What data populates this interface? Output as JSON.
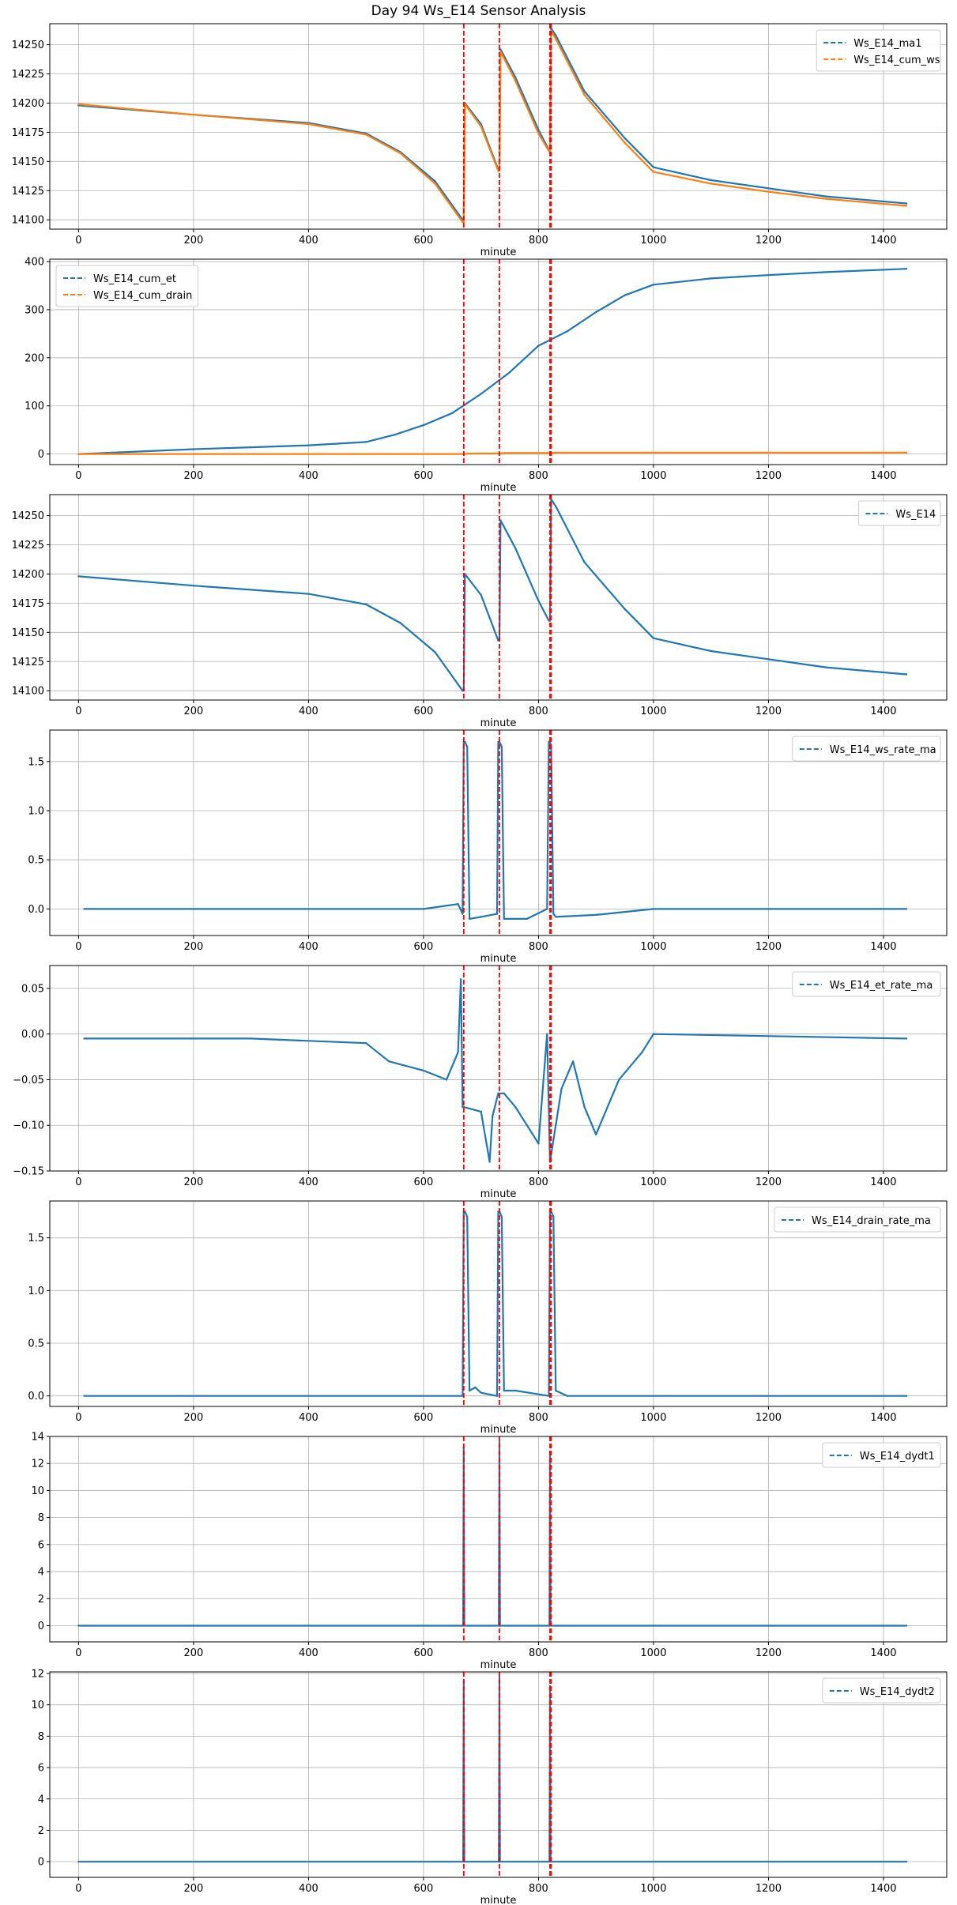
{
  "title": "Day 94 Ws_E14 Sensor Analysis",
  "colors": {
    "blue": "#1f77b4",
    "orange": "#ff7f0e",
    "vline": "#ff0000",
    "grid": "#b0b0b0"
  },
  "chart_data": [
    {
      "type": "line",
      "xlabel": "minute",
      "legend": "top-right",
      "xlim": [
        -50,
        1510
      ],
      "ylim": [
        14092,
        14268
      ],
      "xticks": [
        0,
        200,
        400,
        600,
        800,
        1000,
        1200,
        1400
      ],
      "yticks": [
        14100,
        14125,
        14150,
        14175,
        14200,
        14225,
        14250
      ],
      "vlines": [
        670,
        732,
        820,
        822
      ],
      "series": [
        {
          "name": "Ws_E14_ma1",
          "color": "#1f77b4",
          "x": [
            0,
            200,
            400,
            500,
            560,
            620,
            668,
            670,
            672,
            700,
            730,
            732,
            734,
            760,
            800,
            818,
            820,
            822,
            830,
            880,
            950,
            1000,
            1100,
            1200,
            1300,
            1440
          ],
          "y": [
            14198,
            14190,
            14183,
            14174,
            14158,
            14133,
            14100,
            14100,
            14200,
            14182,
            14143,
            14143,
            14246,
            14222,
            14177,
            14160,
            14160,
            14264,
            14258,
            14210,
            14170,
            14145,
            14134,
            14127,
            14120,
            14114
          ]
        },
        {
          "name": "Ws_E14_cum_ws",
          "color": "#ff7f0e",
          "x": [
            0,
            200,
            400,
            500,
            560,
            620,
            668,
            670,
            672,
            700,
            730,
            732,
            734,
            760,
            800,
            818,
            820,
            822,
            830,
            880,
            950,
            1000,
            1100,
            1200,
            1300,
            1440
          ],
          "y": [
            14199,
            14190,
            14182,
            14173,
            14157,
            14131,
            14098,
            14098,
            14199,
            14180,
            14142,
            14142,
            14244,
            14219,
            14174,
            14159,
            14159,
            14262,
            14255,
            14207,
            14166,
            14141,
            14131,
            14124,
            14118,
            14112
          ]
        }
      ]
    },
    {
      "type": "line",
      "xlabel": "minute",
      "legend": "top-left",
      "xlim": [
        -50,
        1510
      ],
      "ylim": [
        -22,
        405
      ],
      "xticks": [
        0,
        200,
        400,
        600,
        800,
        1000,
        1200,
        1400
      ],
      "yticks": [
        0,
        100,
        200,
        300,
        400
      ],
      "vlines": [
        670,
        732,
        820,
        822
      ],
      "series": [
        {
          "name": "Ws_E14_cum_et",
          "color": "#1f77b4",
          "x": [
            0,
            100,
            200,
            300,
            400,
            500,
            550,
            600,
            650,
            700,
            750,
            800,
            850,
            900,
            950,
            1000,
            1100,
            1200,
            1300,
            1440
          ],
          "y": [
            0,
            5,
            10,
            14,
            18,
            25,
            40,
            60,
            85,
            125,
            170,
            225,
            255,
            295,
            330,
            352,
            365,
            372,
            378,
            385
          ]
        },
        {
          "name": "Ws_E14_cum_drain",
          "color": "#ff7f0e",
          "x": [
            0,
            670,
            680,
            732,
            740,
            820,
            830,
            1440
          ],
          "y": [
            0,
            0,
            1,
            1,
            2,
            2,
            3,
            3
          ]
        }
      ]
    },
    {
      "type": "line",
      "xlabel": "minute",
      "legend": "top-right",
      "xlim": [
        -50,
        1510
      ],
      "ylim": [
        14092,
        14268
      ],
      "xticks": [
        0,
        200,
        400,
        600,
        800,
        1000,
        1200,
        1400
      ],
      "yticks": [
        14100,
        14125,
        14150,
        14175,
        14200,
        14225,
        14250
      ],
      "vlines": [
        670,
        732,
        820,
        822
      ],
      "series": [
        {
          "name": "Ws_E14",
          "color": "#1f77b4",
          "x": [
            0,
            200,
            400,
            500,
            560,
            620,
            668,
            670,
            672,
            700,
            730,
            732,
            734,
            760,
            800,
            818,
            820,
            822,
            830,
            880,
            950,
            1000,
            1100,
            1200,
            1300,
            1440
          ],
          "y": [
            14198,
            14190,
            14183,
            14174,
            14158,
            14133,
            14100,
            14100,
            14200,
            14182,
            14143,
            14143,
            14246,
            14222,
            14177,
            14160,
            14160,
            14264,
            14258,
            14210,
            14170,
            14145,
            14134,
            14127,
            14120,
            14114
          ]
        }
      ]
    },
    {
      "type": "line",
      "xlabel": "minute",
      "legend": "top-right",
      "xlim": [
        -50,
        1510
      ],
      "ylim": [
        -0.27,
        1.82
      ],
      "xticks": [
        0,
        200,
        400,
        600,
        800,
        1000,
        1200,
        1400
      ],
      "yticks": [
        0.0,
        0.5,
        1.0,
        1.5
      ],
      "ytick_labels": [
        "0.0",
        "0.5",
        "1.0",
        "1.5"
      ],
      "vlines": [
        670,
        732,
        820,
        822
      ],
      "series": [
        {
          "name": "Ws_E14_ws_rate_ma",
          "color": "#1f77b4",
          "x": [
            10,
            600,
            660,
            668,
            670,
            672,
            676,
            680,
            700,
            728,
            730,
            732,
            736,
            740,
            780,
            815,
            818,
            820,
            822,
            826,
            830,
            900,
            1000,
            1440
          ],
          "y": [
            0,
            0,
            0.05,
            -0.05,
            1.7,
            1.7,
            1.65,
            -0.1,
            -0.08,
            -0.05,
            1.7,
            1.7,
            1.65,
            -0.1,
            -0.1,
            0.0,
            1.7,
            1.7,
            1.65,
            -0.05,
            -0.08,
            -0.06,
            0,
            0
          ]
        }
      ]
    },
    {
      "type": "line",
      "xlabel": "minute",
      "legend": "top-right",
      "xlim": [
        -50,
        1510
      ],
      "ylim": [
        -0.15,
        0.075
      ],
      "xticks": [
        0,
        200,
        400,
        600,
        800,
        1000,
        1200,
        1400
      ],
      "yticks": [
        -0.15,
        -0.1,
        -0.05,
        0.0,
        0.05
      ],
      "ytick_labels": [
        "−0.15",
        "−0.10",
        "−0.05",
        "0.00",
        "0.05"
      ],
      "vlines": [
        670,
        732,
        820,
        822
      ],
      "series": [
        {
          "name": "Ws_E14_et_rate_ma",
          "color": "#1f77b4",
          "x": [
            10,
            300,
            500,
            540,
            600,
            640,
            660,
            665,
            668,
            670,
            700,
            715,
            720,
            730,
            740,
            760,
            780,
            800,
            815,
            820,
            840,
            860,
            880,
            900,
            940,
            980,
            1000,
            1440
          ],
          "y": [
            -0.005,
            -0.005,
            -0.01,
            -0.03,
            -0.04,
            -0.05,
            -0.02,
            0.06,
            -0.08,
            -0.08,
            -0.085,
            -0.14,
            -0.09,
            -0.065,
            -0.065,
            -0.08,
            -0.1,
            -0.12,
            0.0,
            -0.14,
            -0.06,
            -0.03,
            -0.08,
            -0.11,
            -0.05,
            -0.02,
            0.0,
            -0.005
          ]
        }
      ]
    },
    {
      "type": "line",
      "xlabel": "minute",
      "legend": "top-right",
      "xlim": [
        -50,
        1510
      ],
      "ylim": [
        -0.1,
        1.85
      ],
      "xticks": [
        0,
        200,
        400,
        600,
        800,
        1000,
        1200,
        1400
      ],
      "yticks": [
        0.0,
        0.5,
        1.0,
        1.5
      ],
      "ytick_labels": [
        "0.0",
        "0.5",
        "1.0",
        "1.5"
      ],
      "vlines": [
        670,
        732,
        820,
        822
      ],
      "series": [
        {
          "name": "Ws_E14_drain_rate_ma",
          "color": "#1f77b4",
          "x": [
            10,
            668,
            670,
            672,
            676,
            680,
            690,
            700,
            728,
            730,
            732,
            736,
            740,
            760,
            818,
            820,
            822,
            826,
            830,
            850,
            1440
          ],
          "y": [
            0,
            0,
            1.75,
            1.75,
            1.7,
            0.05,
            0.08,
            0.03,
            0,
            1.75,
            1.75,
            1.7,
            0.05,
            0.05,
            0,
            1.75,
            1.75,
            1.7,
            0.05,
            0,
            0
          ]
        }
      ]
    },
    {
      "type": "line",
      "xlabel": "minute",
      "legend": "top-right",
      "xlim": [
        -50,
        1510
      ],
      "ylim": [
        -1.2,
        14
      ],
      "xticks": [
        0,
        200,
        400,
        600,
        800,
        1000,
        1200,
        1400
      ],
      "yticks": [
        0,
        2,
        4,
        6,
        8,
        10,
        12,
        14
      ],
      "vlines": [
        670,
        732,
        820,
        822
      ],
      "series": [
        {
          "name": "Ws_E14_dydt1",
          "color": "#1f77b4",
          "x": [
            0,
            669,
            670,
            671,
            731,
            732,
            733,
            819,
            820,
            821,
            1440
          ],
          "y": [
            0,
            0,
            13.2,
            0,
            0,
            13.6,
            0,
            0,
            12.8,
            0,
            0
          ]
        }
      ]
    },
    {
      "type": "line",
      "xlabel": "minute",
      "legend": "top-right",
      "xlim": [
        -50,
        1510
      ],
      "ylim": [
        -1.0,
        12.1
      ],
      "xticks": [
        0,
        200,
        400,
        600,
        800,
        1000,
        1200,
        1400
      ],
      "yticks": [
        0,
        2,
        4,
        6,
        8,
        10,
        12
      ],
      "vlines": [
        670,
        732,
        820,
        822
      ],
      "series": [
        {
          "name": "Ws_E14_dydt2",
          "color": "#1f77b4",
          "x": [
            0,
            669,
            670,
            671,
            731,
            732,
            733,
            819,
            820,
            821,
            1440
          ],
          "y": [
            0,
            0,
            11.5,
            0,
            0,
            11.8,
            0,
            0,
            11.2,
            0,
            0
          ]
        }
      ]
    }
  ]
}
